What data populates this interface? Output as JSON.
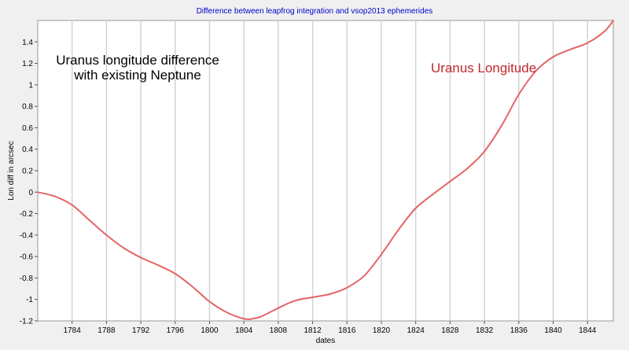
{
  "chart_data": {
    "type": "line",
    "title": "Difference between leapfrog integration and vsop2013 ephemerides",
    "xlabel": "dates",
    "ylabel": "Lon diff in arcsec",
    "xlim": [
      1780,
      1847
    ],
    "ylim": [
      -1.2,
      1.6
    ],
    "x_ticks": [
      1784,
      1788,
      1792,
      1796,
      1800,
      1804,
      1808,
      1812,
      1816,
      1820,
      1824,
      1828,
      1832,
      1836,
      1840,
      1844
    ],
    "y_ticks": [
      -1.2,
      -1,
      -0.8,
      -0.6,
      -0.4,
      -0.2,
      0,
      0.2,
      0.4,
      0.6,
      0.8,
      1,
      1.2,
      1.4
    ],
    "y_tick_labels": [
      "-1.2",
      "-1",
      "-0.8",
      "-0.6",
      "-0.4",
      "-0.2",
      "0",
      "0.2",
      "0.4",
      "0.6",
      "0.8",
      "1",
      "1.2",
      "1.4"
    ],
    "grid": {
      "vertical": true,
      "horizontal": false
    },
    "annotations": [
      {
        "lines": [
          "Uranus longitude difference",
          "with existing Neptune"
        ]
      },
      {
        "text": "Uranus Longitude"
      }
    ],
    "colors": {
      "series": "#e46466",
      "background": "#f0f0f0",
      "plot_background": "#ffffff",
      "grid": "#d3d3d3",
      "title": "#0000cc",
      "annotation_red": "#c0282c"
    },
    "series": [
      {
        "name": "Uranus Longitude",
        "x": [
          1780,
          1782,
          1784,
          1786,
          1788,
          1790,
          1792,
          1794,
          1796,
          1798,
          1800,
          1802,
          1804,
          1805,
          1806,
          1808,
          1810,
          1812,
          1814,
          1816,
          1818,
          1820,
          1822,
          1824,
          1826,
          1828,
          1830,
          1832,
          1834,
          1836,
          1838,
          1840,
          1842,
          1844,
          1846,
          1847
        ],
        "values": [
          0,
          -0.04,
          -0.12,
          -0.26,
          -0.4,
          -0.52,
          -0.61,
          -0.68,
          -0.76,
          -0.88,
          -1.02,
          -1.12,
          -1.18,
          -1.18,
          -1.16,
          -1.08,
          -1.01,
          -0.98,
          -0.95,
          -0.89,
          -0.78,
          -0.58,
          -0.35,
          -0.15,
          -0.02,
          0.1,
          0.22,
          0.38,
          0.62,
          0.91,
          1.13,
          1.26,
          1.33,
          1.39,
          1.5,
          1.6
        ]
      }
    ]
  }
}
